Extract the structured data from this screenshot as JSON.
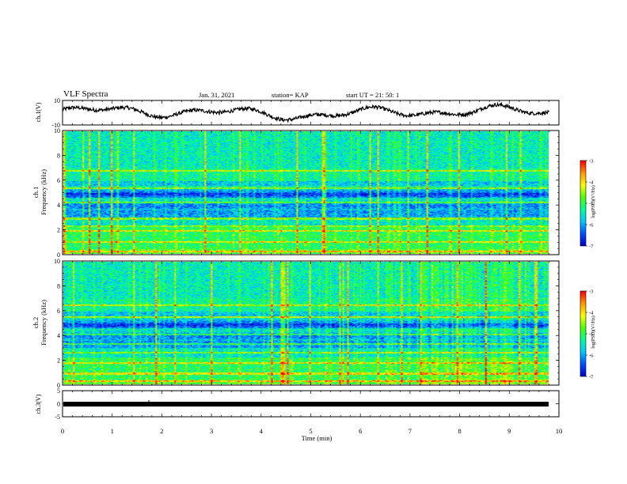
{
  "header": {
    "title": "VLF Spectra",
    "date": "Jan. 31, 2021",
    "station": "station= KAP",
    "start": "start UT =  21: 50: 1"
  },
  "chart_data": [
    {
      "type": "line",
      "panel": "ch1-waveform",
      "ylabel": "ch.1(V)",
      "ylim": [
        -10,
        10
      ],
      "y_ticks": [
        "10",
        "-10"
      ],
      "xlim": [
        0,
        10
      ],
      "description_values": "noisy waveform fluctuating roughly between -8 and 7 V"
    },
    {
      "type": "heatmap",
      "panel": "ch1-spectrogram",
      "ylabel": "ch.1\nFrequency (kHz)",
      "ylabel_line1": "ch.1",
      "ylabel_line2": "Frequency (kHz)",
      "ylim": [
        0,
        10
      ],
      "y_ticks": [
        "0",
        "2",
        "4",
        "6",
        "8",
        "10"
      ],
      "xlim": [
        0,
        10
      ],
      "colorbar": {
        "label": "log(PSD)(V²/Hz)",
        "range": [
          -7,
          -3
        ],
        "ticks": [
          "-3",
          "-4",
          "-5",
          "-6",
          "-7"
        ]
      }
    },
    {
      "type": "heatmap",
      "panel": "ch2-spectrogram",
      "ylabel": "ch.2\nFrequency (kHz)",
      "ylabel_line1": "ch.2",
      "ylabel_line2": "Frequency (kHz)",
      "ylim": [
        0,
        10
      ],
      "y_ticks": [
        "0",
        "2",
        "4",
        "6",
        "8",
        "10"
      ],
      "xlim": [
        0,
        10
      ],
      "colorbar": {
        "label": "log(PSD)(V²/Hz)",
        "range": [
          -7,
          -3
        ],
        "ticks": [
          "-3",
          "-4",
          "-5",
          "-6",
          "-7"
        ]
      }
    },
    {
      "type": "line",
      "panel": "ch3-waveform",
      "ylabel": "ch.3(V)",
      "ylim": [
        -5,
        5
      ],
      "y_ticks": [
        "5",
        "0",
        "-5"
      ],
      "xlim": [
        0,
        10
      ],
      "xlabel": "Time (min)",
      "x_ticks": [
        "0",
        "1",
        "2",
        "3",
        "4",
        "5",
        "6",
        "7",
        "8",
        "9",
        "10"
      ],
      "description_values": "flat thick band near -0.3 V from 0 to 9.8 min"
    }
  ],
  "colors": {
    "waveform": "#000000",
    "cmap": [
      "#0000c8",
      "#0050ff",
      "#00c8ff",
      "#00ff96",
      "#50ff00",
      "#ffff00",
      "#ff9600",
      "#ff0000"
    ]
  }
}
